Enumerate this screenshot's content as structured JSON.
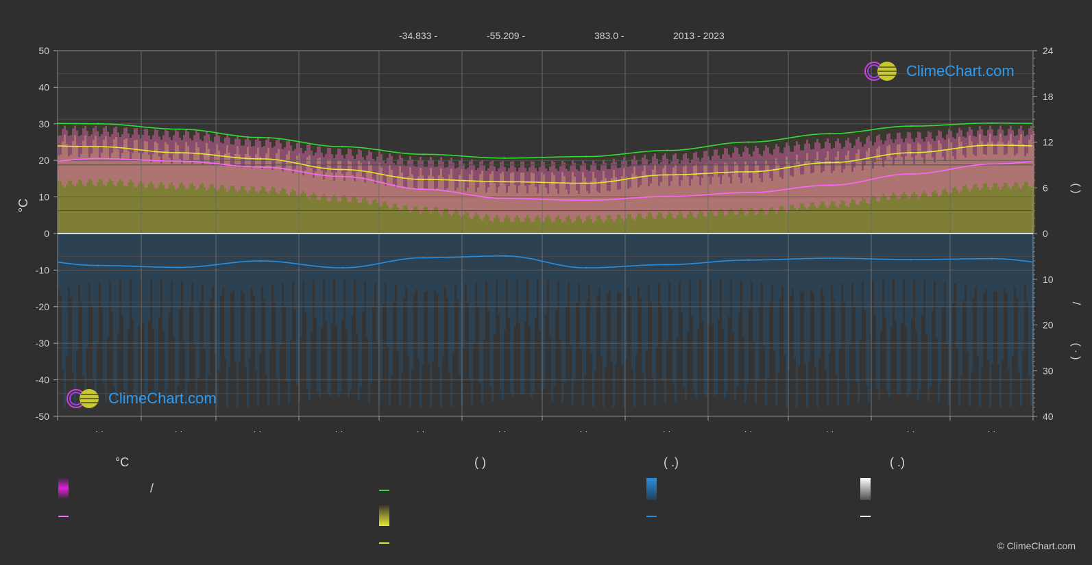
{
  "header": {
    "lat": "-34.833 -",
    "lon": "-55.209 -",
    "elev": "383.0 -",
    "years": "2013 - 2023"
  },
  "logo_text": "ClimeChart.com",
  "copyright": "© ClimeChart.com",
  "axis": {
    "left_label": "°C",
    "left_ticks": [
      "50",
      "40",
      "30",
      "20",
      "10",
      "0",
      "-10",
      "-20",
      "-30",
      "-40",
      "-50"
    ],
    "right_ticks_top": [
      "24",
      "18",
      "12",
      "6",
      "0"
    ],
    "right_ticks_bottom": [
      "10",
      "20",
      "30",
      "40"
    ],
    "right_label_top": "(     )",
    "right_label_slash": "/",
    "right_label_bottom": "( · )",
    "month_ticks": [
      "· ·",
      "· ·",
      "· ·",
      "· ·",
      "· ·",
      "· ·",
      "· ·",
      "· ·",
      "· ·",
      "· ·",
      "· ·",
      "· ·"
    ]
  },
  "legend": {
    "col1_head": "°C",
    "col2_head": "(           )",
    "col3_head": "(   .)",
    "col4_head": "(   .)",
    "slash": "/"
  },
  "colors": {
    "daylight": "#33dd33",
    "sunshine": "#e8e832",
    "mean_temp": "#ff66ff",
    "precip": "#2a8fe0",
    "temp_band": "#e868b8",
    "sun_band": "#b8b840",
    "rain_band": "#1f5f8f"
  },
  "chart_data": {
    "type": "line",
    "x": [
      1,
      2,
      3,
      4,
      5,
      6,
      7,
      8,
      9,
      10,
      11,
      12
    ],
    "ylim": [
      -50,
      50
    ],
    "y2lim_hours": [
      0,
      24
    ],
    "y2lim_precip_mm": [
      0,
      40
    ],
    "series": [
      {
        "key": "daylight_hours",
        "values": [
          14.4,
          13.7,
          12.6,
          11.4,
          10.4,
          9.9,
          10.1,
          10.9,
          12.0,
          13.1,
          14.1,
          14.5
        ]
      },
      {
        "key": "sunshine_hours",
        "values": [
          11.4,
          10.6,
          9.8,
          8.4,
          7.1,
          6.8,
          6.6,
          7.7,
          8.1,
          9.3,
          10.6,
          11.6
        ]
      },
      {
        "key": "mean_temp_c",
        "values": [
          20.5,
          19.8,
          18.2,
          15.6,
          12.1,
          9.6,
          9.1,
          10.1,
          11.2,
          13.2,
          16.3,
          19.0
        ]
      },
      {
        "key": "precip_mm",
        "values": [
          7.0,
          7.4,
          6.0,
          7.5,
          5.3,
          4.9,
          7.5,
          6.8,
          5.8,
          5.4,
          5.7,
          5.5
        ]
      }
    ],
    "bands": {
      "temp_max_c": [
        28,
        27,
        25,
        22,
        19.5,
        18.5,
        18.5,
        20.5,
        22.5,
        24.5,
        26.5,
        28
      ],
      "temp_min_c": [
        15,
        14,
        13,
        10.5,
        7.5,
        5,
        5,
        6,
        7,
        9,
        11.5,
        14
      ]
    }
  }
}
